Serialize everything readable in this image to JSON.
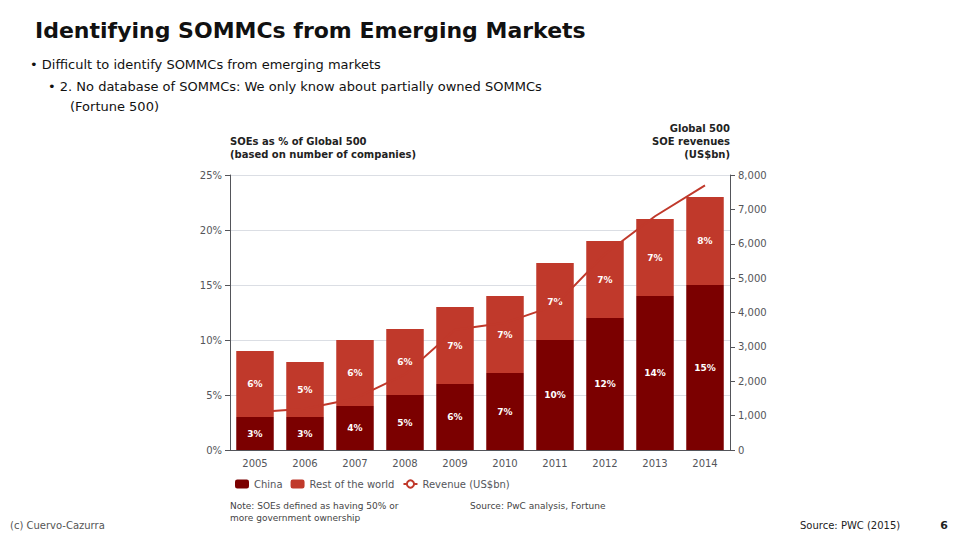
{
  "chart_data": {
    "type": "bar",
    "title": "Identifying SOMMCs from Emerging Markets",
    "annotations": [
      "• Difficult to identify SOMMCs from emerging markets",
      "• 2. No database of SOMMCs: We only know about partially owned SOMMCs",
      "(Fortune 500)",
      "Note: SOEs defined as having 50% or\nmore government ownership",
      "Source: PwC analysis, Fortune",
      "(c) Cuervo-Cazurra",
      "Source: PWC (2015)",
      "6"
    ],
    "ylabel": "SOEs as % of Global 500\n(based on number of companies)",
    "y2label": "Global 500\nSOE revenues\n(US$bn)",
    "categories": [
      "2005",
      "2006",
      "2007",
      "2008",
      "2009",
      "2010",
      "2011",
      "2012",
      "2013",
      "2014"
    ],
    "stacked": true,
    "series": [
      {
        "name": "China",
        "type": "bar",
        "color": "#7B0000",
        "data_labels": true,
        "values": [
          3,
          3,
          4,
          5,
          6,
          7,
          10,
          12,
          14,
          15
        ],
        "value_labels": [
          "3%",
          "3%",
          "4%",
          "5%",
          "6%",
          "7%",
          "10%",
          "12%",
          "14%",
          "15%"
        ]
      },
      {
        "name": "Rest of the world",
        "type": "bar",
        "color": "#C0392B",
        "data_labels": true,
        "values": [
          6,
          5,
          6,
          6,
          7,
          7,
          7,
          7,
          7,
          8
        ],
        "value_labels": [
          "6%",
          "5%",
          "6%",
          "6%",
          "7%",
          "7%",
          "7%",
          "7%",
          "7%",
          "8%"
        ]
      },
      {
        "name": "Revenue (US$bn)",
        "type": "line",
        "color": "#C0392B",
        "axis": "y2",
        "values": [
          1100,
          1200,
          1500,
          2200,
          3500,
          3700,
          4200,
          5700,
          6800,
          7700
        ]
      }
    ],
    "ylim": [
      0,
      25
    ],
    "yticks": [
      {
        "value": 0,
        "label": "0%"
      },
      {
        "value": 5,
        "label": "5%"
      },
      {
        "value": 10,
        "label": "10%"
      },
      {
        "value": 15,
        "label": "15%"
      },
      {
        "value": 20,
        "label": "20%"
      },
      {
        "value": 25,
        "label": "25%"
      }
    ],
    "y2lim": [
      0,
      8000
    ],
    "y2ticks": [
      0,
      {
        "value": 1000,
        "label": "1,000"
      },
      {
        "value": 2000,
        "label": "2,000"
      },
      {
        "value": 3000,
        "label": "3,000"
      },
      {
        "value": 4000,
        "label": "4,000"
      },
      {
        "value": 5000,
        "label": "5,000"
      },
      {
        "value": 6000,
        "label": "6,000"
      },
      {
        "value": 7000,
        "label": "7,000"
      },
      {
        "value": 8000,
        "label": "8,000"
      }
    ],
    "grid": true,
    "legend": "bottom"
  }
}
